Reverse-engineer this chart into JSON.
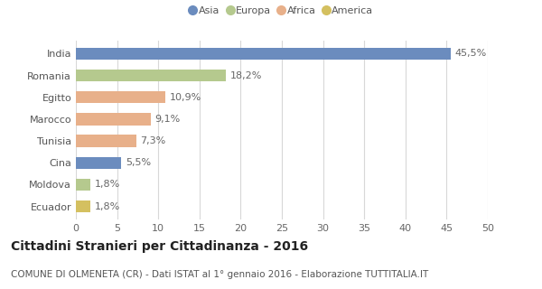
{
  "categories": [
    "India",
    "Romania",
    "Egitto",
    "Marocco",
    "Tunisia",
    "Cina",
    "Moldova",
    "Ecuador"
  ],
  "values": [
    45.5,
    18.2,
    10.9,
    9.1,
    7.3,
    5.5,
    1.8,
    1.8
  ],
  "labels": [
    "45,5%",
    "18,2%",
    "10,9%",
    "9,1%",
    "7,3%",
    "5,5%",
    "1,8%",
    "1,8%"
  ],
  "colors": [
    "#6b8cbe",
    "#b5c98e",
    "#e8b08a",
    "#e8b08a",
    "#e8b08a",
    "#6b8cbe",
    "#b5c98e",
    "#d4c060"
  ],
  "legend_labels": [
    "Asia",
    "Europa",
    "Africa",
    "America"
  ],
  "legend_colors": [
    "#6b8cbe",
    "#b5c98e",
    "#e8b08a",
    "#d4c060"
  ],
  "title_bold": "Cittadini Stranieri per Cittadinanza - 2016",
  "subtitle": "COMUNE DI OLMENETA (CR) - Dati ISTAT al 1° gennaio 2016 - Elaborazione TUTTITALIA.IT",
  "xlim": [
    0,
    50
  ],
  "xticks": [
    0,
    5,
    10,
    15,
    20,
    25,
    30,
    35,
    40,
    45,
    50
  ],
  "background_color": "#ffffff",
  "grid_color": "#d8d8d8",
  "bar_height": 0.55,
  "label_fontsize": 8,
  "tick_fontsize": 8,
  "title_fontsize": 10,
  "subtitle_fontsize": 7.5
}
